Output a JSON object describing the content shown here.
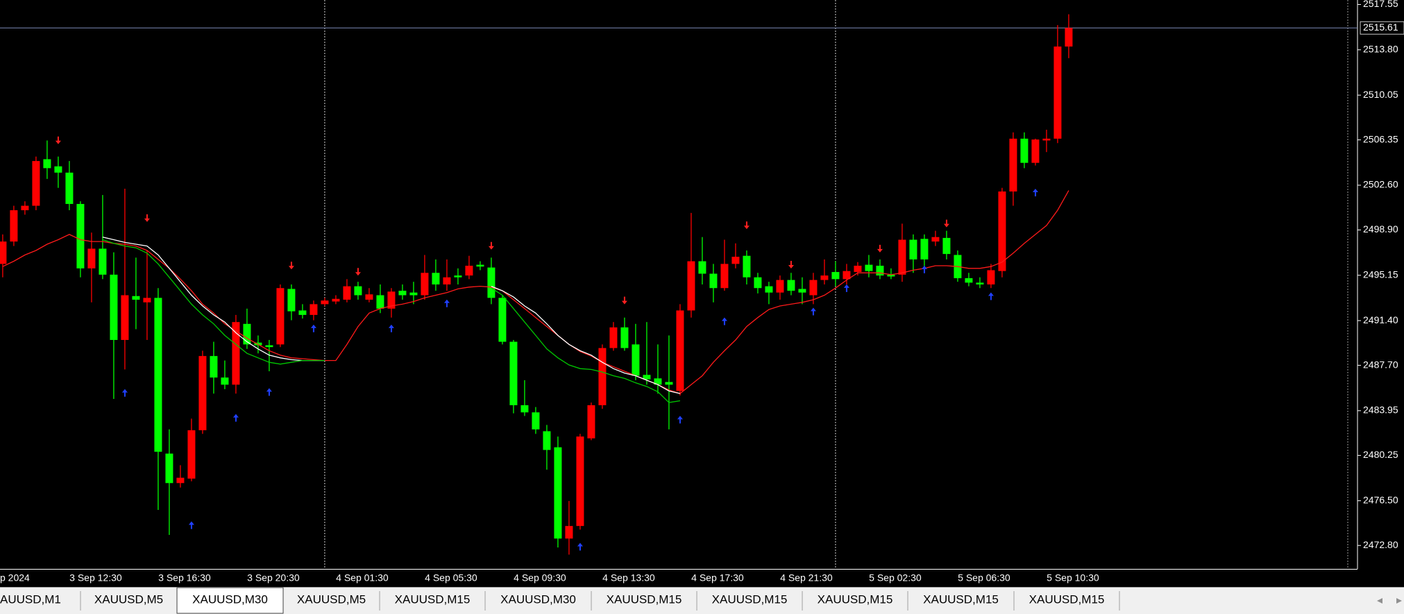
{
  "chart_data": {
    "type": "candlestick",
    "categories": [
      "p 2024",
      null,
      null,
      null,
      null,
      null,
      null,
      null,
      "3 Sep 12:30",
      null,
      null,
      null,
      null,
      null,
      null,
      null,
      "3 Sep 16:30",
      null,
      null,
      null,
      null,
      null,
      null,
      null,
      "3 Sep 20:30",
      null,
      null,
      null,
      null,
      null,
      null,
      null,
      "4 Sep 01:30",
      null,
      null,
      null,
      null,
      null,
      null,
      null,
      "4 Sep 05:30",
      null,
      null,
      null,
      null,
      null,
      null,
      null,
      "4 Sep 09:30",
      null,
      null,
      null,
      null,
      null,
      null,
      null,
      "4 Sep 13:30",
      null,
      null,
      null,
      null,
      null,
      null,
      null,
      "4 Sep 17:30",
      null,
      null,
      null,
      null,
      null,
      null,
      null,
      "4 Sep 21:30",
      null,
      null,
      null,
      null,
      null,
      null,
      null,
      "5 Sep 02:30",
      null,
      null,
      null,
      null,
      null,
      null,
      null,
      "5 Sep 06:30",
      null,
      null,
      null,
      null,
      null,
      null,
      null,
      "5 Sep 10:30"
    ],
    "open": [
      2496.09,
      2497.94,
      2500.53,
      2500.9,
      2504.75,
      2504.16,
      2503.64,
      2501.05,
      2495.72,
      2497.35,
      2495.2,
      2489.8,
      2493.43,
      2492.91,
      2493.28,
      2480.4,
      2477.96,
      2478.33,
      2482.33,
      2488.47,
      2486.69,
      2486.1,
      2491.13,
      2489.58,
      2489.36,
      2489.43,
      2494.02,
      2492.24,
      2491.87,
      2492.76,
      2492.98,
      2493.13,
      2494.24,
      2493.13,
      2493.5,
      2492.39,
      2493.87,
      2493.72,
      2493.5,
      2495.35,
      2494.39,
      2495.13,
      2495.13,
      2496.02,
      2495.79,
      2493.28,
      2489.65,
      2484.4,
      2483.81,
      2482.25,
      2480.92,
      2473.37,
      2474.41,
      2481.66,
      2484.4,
      2489.13,
      2490.84,
      2489.43,
      2486.91,
      2486.62,
      2486.32,
      2485.58,
      2492.24,
      2496.31,
      2495.28,
      2494.09,
      2496.09,
      2496.76,
      2494.98,
      2494.24,
      2493.72,
      2494.76,
      2494.02,
      2493.5,
      2494.76,
      2495.42,
      2494.83,
      2495.42,
      2496.02,
      2495.94,
      2495.2,
      2495.2,
      2498.09,
      2498.16,
      2497.94,
      2498.24,
      2496.83,
      2494.91,
      2494.54,
      2494.39,
      2495.5,
      2502.08,
      2506.45,
      2504.45,
      2506.3,
      2506.45,
      2514.07
    ],
    "high": [
      2498.53,
      2500.9,
      2501.27,
      2504.97,
      2506.3,
      2504.97,
      2504.6,
      2501.27,
      2498.68,
      2501.79,
      2497.05,
      2502.31,
      2496.61,
      2497.2,
      2494.09,
      2482.4,
      2479.44,
      2483.29,
      2488.91,
      2489.65,
      2488.1,
      2491.87,
      2492.39,
      2490.17,
      2489.8,
      2494.39,
      2494.39,
      2492.76,
      2493.06,
      2493.28,
      2493.5,
      2494.83,
      2494.61,
      2494.09,
      2494.39,
      2494.09,
      2494.39,
      2494.61,
      2496.83,
      2496.46,
      2496.46,
      2495.72,
      2496.76,
      2496.31,
      2496.61,
      2493.5,
      2489.8,
      2486.47,
      2484.25,
      2482.77,
      2481.81,
      2476.48,
      2482.03,
      2484.62,
      2489.43,
      2491.28,
      2491.65,
      2491.13,
      2491.28,
      2489.43,
      2490.17,
      2492.76,
      2500.31,
      2498.31,
      2496.09,
      2498.09,
      2497.79,
      2497.2,
      2495.35,
      2494.61,
      2495.13,
      2495.35,
      2494.98,
      2495.35,
      2496.46,
      2496.31,
      2496.09,
      2496.24,
      2496.83,
      2496.46,
      2495.72,
      2499.42,
      2498.53,
      2498.53,
      2498.83,
      2498.83,
      2497.2,
      2495.35,
      2494.98,
      2496.09,
      2502.38,
      2506.97,
      2506.97,
      2506.45,
      2507.19,
      2515.85,
      2516.74
    ],
    "low": [
      2494.98,
      2497.57,
      2500.16,
      2500.53,
      2503.12,
      2502.38,
      2500.53,
      2494.98,
      2492.91,
      2494.83,
      2484.92,
      2487.36,
      2490.69,
      2489.8,
      2475.74,
      2473.67,
      2477.59,
      2478.11,
      2482.03,
      2485.36,
      2485.73,
      2485.36,
      2489.06,
      2488.69,
      2487.21,
      2489.21,
      2491.43,
      2491.57,
      2491.43,
      2492.61,
      2492.76,
      2492.91,
      2493.13,
      2492.91,
      2492.02,
      2491.65,
      2493.13,
      2492.76,
      2493.13,
      2493.87,
      2493.87,
      2494.39,
      2494.83,
      2495.57,
      2492.76,
      2489.43,
      2483.73,
      2483.51,
      2482.03,
      2479.07,
      2472.63,
      2472.04,
      2474.11,
      2481.51,
      2484.1,
      2488.91,
      2488.91,
      2486.47,
      2486.1,
      2485.36,
      2482.4,
      2485.21,
      2491.65,
      2494.39,
      2492.91,
      2493.87,
      2495.72,
      2494.39,
      2493.65,
      2492.76,
      2493.13,
      2493.5,
      2492.76,
      2492.76,
      2494.39,
      2494.24,
      2494.39,
      2495.13,
      2494.98,
      2494.83,
      2494.83,
      2494.61,
      2495.35,
      2495.72,
      2497.57,
      2496.46,
      2494.61,
      2494.24,
      2494.09,
      2494.09,
      2494.98,
      2500.9,
      2504.01,
      2504.23,
      2505.34,
      2506.08,
      2513.11
    ],
    "close": [
      2497.94,
      2500.53,
      2500.9,
      2504.6,
      2504.01,
      2503.64,
      2501.05,
      2495.72,
      2497.35,
      2495.2,
      2489.8,
      2493.5,
      2493.13,
      2493.28,
      2480.55,
      2477.96,
      2478.4,
      2482.33,
      2488.47,
      2486.69,
      2486.1,
      2491.28,
      2489.43,
      2489.36,
      2489.21,
      2494.09,
      2492.17,
      2491.87,
      2492.76,
      2493.06,
      2493.2,
      2494.24,
      2493.5,
      2493.57,
      2492.39,
      2493.8,
      2493.5,
      2493.5,
      2495.35,
      2494.39,
      2494.98,
      2494.98,
      2495.94,
      2495.87,
      2493.28,
      2489.65,
      2484.4,
      2483.81,
      2482.4,
      2480.7,
      2473.37,
      2474.41,
      2481.81,
      2484.4,
      2489.13,
      2490.84,
      2489.13,
      2486.84,
      2486.54,
      2486.1,
      2486.1,
      2492.24,
      2496.31,
      2495.28,
      2494.09,
      2496.09,
      2496.68,
      2494.98,
      2494.09,
      2493.72,
      2494.76,
      2493.87,
      2493.72,
      2494.76,
      2495.13,
      2494.83,
      2495.5,
      2495.94,
      2495.5,
      2495.13,
      2495.05,
      2498.09,
      2496.46,
      2496.46,
      2498.31,
      2496.91,
      2494.91,
      2494.54,
      2494.39,
      2495.57,
      2502.08,
      2506.45,
      2504.45,
      2506.38,
      2506.45,
      2514.07,
      2515.61
    ],
    "up_color": "#ff0000",
    "down_color": "#00ff00",
    "lines": [
      {
        "color": "#ff1a1a",
        "values": [
          2495.87,
          2496.31,
          2496.83,
          2497.2,
          2497.72,
          2498.09,
          2498.53,
          2498.09,
          2497.94,
          2497.94,
          2497.79,
          2497.72,
          2497.57,
          2497.2,
          2496.46,
          2495.72,
          2494.83,
          2493.87,
          2492.76,
          2492.02,
          2491.13,
          2490.54,
          2489.95,
          2489.43,
          2488.91,
          2488.54,
          2488.32,
          2488.25,
          2488.17,
          2488.1,
          2488.1,
          2489.43,
          2490.91,
          2492.02,
          2492.39,
          2492.61,
          2492.76,
          2492.98,
          2493.28,
          2493.5,
          2493.72,
          2494.02,
          2494.17,
          2494.24,
          2494.17,
          2493.87,
          2493.13,
          2492.39,
          2491.65,
          2490.91,
          2490.17,
          2489.43,
          2488.84,
          2488.47,
          2487.95,
          2487.58,
          2487.21,
          2486.84,
          2486.47,
          2486.1,
          2485.66,
          2485.36,
          2486.1,
          2486.84,
          2487.95,
          2488.91,
          2489.8,
          2490.91,
          2491.65,
          2492.32,
          2492.61,
          2492.76,
          2492.91,
          2493.13,
          2493.5,
          2494.09,
          2494.76,
          2495.35,
          2495.35,
          2495.35,
          2495.2,
          2495.35,
          2495.57,
          2495.72,
          2495.94,
          2495.94,
          2495.87,
          2495.72,
          2495.72,
          2495.87,
          2496.24,
          2496.98,
          2497.79,
          2498.53,
          2499.27,
          2500.53,
          2502.16
        ]
      },
      {
        "color": "#ffffff",
        "values": [
          null,
          null,
          null,
          null,
          null,
          null,
          null,
          null,
          null,
          2498.31,
          2498.09,
          2497.87,
          2497.72,
          2497.57,
          2496.83,
          2495.72,
          2494.61,
          2493.5,
          2492.61,
          2491.87,
          2491.28,
          2490.39,
          2489.65,
          2489.06,
          2488.54,
          2488.32,
          2488.17,
          2488.1,
          2488.1,
          2488.1,
          null,
          null,
          null,
          null,
          null,
          null,
          null,
          null,
          null,
          null,
          null,
          null,
          null,
          null,
          2494.24,
          2493.87,
          2493.35,
          2492.61,
          2492.02,
          2491.13,
          2490.17,
          2489.43,
          2488.91,
          2488.54,
          2487.95,
          2487.43,
          2487.06,
          2486.84,
          2486.47,
          2486.1,
          2485.58,
          2485.36,
          null,
          null,
          null,
          null,
          null,
          null,
          null,
          null,
          null,
          null,
          null,
          null,
          null,
          null,
          null,
          null,
          null,
          null,
          null,
          null,
          null,
          null,
          null,
          null,
          null,
          null,
          null,
          null,
          null,
          null,
          null,
          null,
          null,
          null,
          null
        ]
      },
      {
        "color": "#00c800",
        "values": [
          null,
          null,
          null,
          null,
          null,
          null,
          null,
          null,
          null,
          2498.09,
          2497.79,
          2497.57,
          2497.42,
          2496.98,
          2496.09,
          2494.98,
          2493.87,
          2492.76,
          2491.87,
          2491.13,
          2490.17,
          2489.43,
          2488.69,
          2488.32,
          2487.95,
          2487.8,
          2487.95,
          2488.1,
          2488.1,
          2488.1,
          null,
          null,
          null,
          null,
          null,
          null,
          null,
          null,
          null,
          null,
          null,
          null,
          null,
          null,
          2494.09,
          2493.5,
          2492.39,
          2491.28,
          2490.17,
          2489.06,
          2488.32,
          2487.73,
          2487.43,
          2487.36,
          2487.14,
          2486.84,
          2486.62,
          2486.25,
          2485.95,
          2485.51,
          2484.62,
          2484.77,
          null,
          null,
          null,
          null,
          null,
          null,
          null,
          null,
          null,
          null,
          null,
          null,
          null,
          null,
          null,
          null,
          null,
          null,
          null,
          null,
          null,
          null,
          null,
          null,
          null,
          null,
          null,
          null,
          null,
          null,
          null,
          null,
          null,
          null,
          null
        ]
      }
    ],
    "markers": [
      {
        "symbol": "down",
        "color": "#ff2020",
        "values": [
          null,
          null,
          null,
          null,
          null,
          2506.23,
          null,
          null,
          null,
          null,
          null,
          null,
          null,
          2499.79,
          null,
          null,
          null,
          null,
          null,
          null,
          null,
          null,
          null,
          null,
          null,
          null,
          2495.87,
          null,
          null,
          null,
          null,
          null,
          2495.35,
          null,
          null,
          null,
          null,
          null,
          null,
          null,
          null,
          null,
          null,
          null,
          2497.5,
          null,
          null,
          null,
          null,
          null,
          null,
          null,
          null,
          null,
          null,
          null,
          2492.98,
          null,
          null,
          null,
          null,
          null,
          null,
          null,
          null,
          null,
          null,
          2499.2,
          null,
          null,
          null,
          2495.94,
          null,
          null,
          null,
          null,
          null,
          null,
          null,
          2497.27,
          null,
          null,
          null,
          null,
          null,
          2499.35,
          null,
          null,
          null,
          null,
          null,
          null,
          null,
          null,
          null,
          null,
          null
        ]
      },
      {
        "symbol": "up",
        "color": "#2040ff",
        "values": [
          null,
          null,
          null,
          null,
          null,
          null,
          null,
          null,
          null,
          null,
          null,
          2485.51,
          null,
          null,
          null,
          null,
          null,
          2474.56,
          null,
          null,
          null,
          2483.44,
          null,
          null,
          2485.58,
          null,
          null,
          null,
          2490.84,
          null,
          null,
          null,
          null,
          null,
          null,
          2490.84,
          null,
          null,
          null,
          null,
          2492.91,
          null,
          null,
          null,
          null,
          null,
          null,
          null,
          null,
          null,
          null,
          null,
          2472.78,
          null,
          null,
          null,
          null,
          null,
          null,
          null,
          null,
          2483.29,
          null,
          null,
          null,
          2491.43,
          null,
          null,
          null,
          null,
          null,
          null,
          null,
          2492.24,
          null,
          null,
          2494.17,
          null,
          null,
          null,
          null,
          null,
          null,
          2495.72,
          null,
          null,
          null,
          null,
          null,
          2493.5,
          null,
          null,
          null,
          2502.08,
          null,
          null,
          null
        ]
      }
    ],
    "last_price": 2515.61,
    "last_price_color": "#7d8bb8",
    "ylim": [
      2470.86,
      2517.92
    ],
    "yticks": [
      2517.55,
      {
        "value": 2513.8,
        "label": "2513.80"
      },
      2510.05,
      2506.35,
      {
        "value": 2502.6,
        "label": "2502.60"
      },
      {
        "value": 2498.9,
        "label": "2498.90"
      },
      2495.15,
      {
        "value": 2491.4,
        "label": "2491.40"
      },
      {
        "value": 2487.7,
        "label": "2487.70"
      },
      2483.95,
      2480.25,
      {
        "value": 2476.5,
        "label": "2476.50"
      },
      {
        "value": 2472.8,
        "label": "2472.80"
      }
    ]
  },
  "tabs": [
    "AUUSD,M1",
    "XAUUSD,M5",
    "XAUUSD,M30",
    "XAUUSD,M5",
    "XAUUSD,M15",
    "XAUUSD,M30",
    "XAUUSD,M15",
    "XAUUSD,M15",
    "XAUUSD,M15",
    "XAUUSD,M15",
    "XAUUSD,M15"
  ]
}
